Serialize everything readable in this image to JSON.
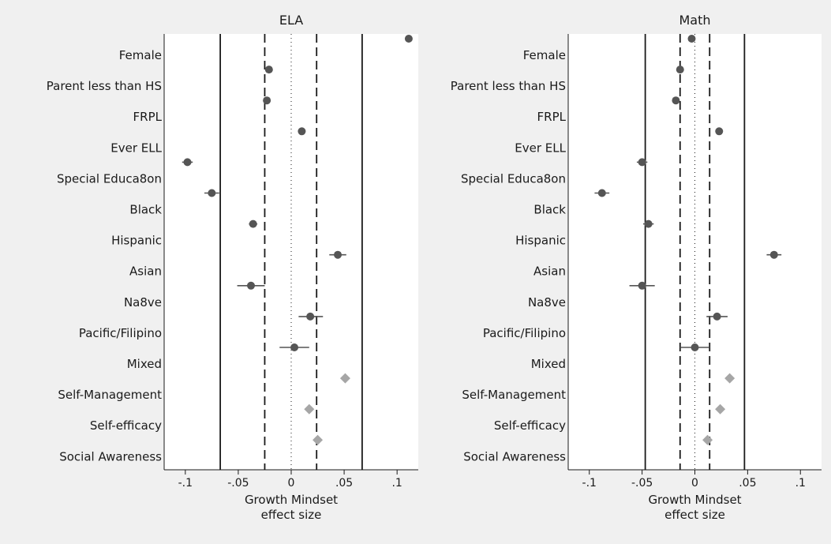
{
  "chart_data": [
    {
      "type": "scatter",
      "title": "ELA",
      "xlabel": [
        "Growth Mindset",
        "effect size"
      ],
      "xlim": [
        -0.12,
        0.12
      ],
      "xticks": [
        -0.1,
        -0.05,
        0,
        0.05,
        0.1
      ],
      "xtick_labels": [
        "-.1",
        "-.05",
        "0",
        ".05",
        ".1"
      ],
      "reference_lines": [
        {
          "style": "solid",
          "x": -0.067
        },
        {
          "style": "dashed",
          "x": -0.025
        },
        {
          "style": "dotted",
          "x": 0
        },
        {
          "style": "dashed",
          "x": 0.024
        },
        {
          "style": "solid",
          "x": 0.067
        }
      ],
      "categories": [
        "Female",
        "Parent less than HS",
        "FRPL",
        "Ever ELL",
        "Special Educa8on",
        "Black",
        "Hispanic",
        "Asian",
        "Na8ve",
        "Pacific/Filipino",
        "Mixed",
        "Self-Management",
        "Self-efficacy",
        "Social Awareness"
      ],
      "points": [
        {
          "label": "Female",
          "x": 0.111,
          "ci": [
            0.109,
            0.113
          ],
          "marker": "circle"
        },
        {
          "label": "Parent less than HS",
          "x": -0.021,
          "ci": [
            -0.023,
            -0.019
          ],
          "marker": "circle"
        },
        {
          "label": "FRPL",
          "x": -0.023,
          "ci": [
            -0.026,
            -0.02
          ],
          "marker": "circle"
        },
        {
          "label": "Ever ELL",
          "x": 0.01,
          "ci": [
            0.008,
            0.012
          ],
          "marker": "circle"
        },
        {
          "label": "Special Educa8on",
          "x": -0.098,
          "ci": [
            -0.103,
            -0.093
          ],
          "marker": "circle"
        },
        {
          "label": "Black",
          "x": -0.075,
          "ci": [
            -0.082,
            -0.068
          ],
          "marker": "circle"
        },
        {
          "label": "Hispanic",
          "x": -0.036,
          "ci": [
            -0.04,
            -0.032
          ],
          "marker": "circle"
        },
        {
          "label": "Asian",
          "x": 0.044,
          "ci": [
            0.036,
            0.052
          ],
          "marker": "circle"
        },
        {
          "label": "Na8ve",
          "x": -0.038,
          "ci": [
            -0.051,
            -0.025
          ],
          "marker": "circle"
        },
        {
          "label": "Pacific/Filipino",
          "x": 0.018,
          "ci": [
            0.007,
            0.03
          ],
          "marker": "circle"
        },
        {
          "label": "Mixed",
          "x": 0.003,
          "ci": [
            -0.011,
            0.017
          ],
          "marker": "circle"
        },
        {
          "label": "Self-Management",
          "x": 0.051,
          "ci": [
            0.05,
            0.052
          ],
          "marker": "diamond"
        },
        {
          "label": "Self-efficacy",
          "x": 0.017,
          "ci": [
            0.016,
            0.018
          ],
          "marker": "diamond"
        },
        {
          "label": "Social Awareness",
          "x": 0.025,
          "ci": [
            0.024,
            0.026
          ],
          "marker": "diamond"
        }
      ]
    },
    {
      "type": "scatter",
      "title": "Math",
      "xlabel": [
        "Growth Mindset",
        "effect size"
      ],
      "xlim": [
        -0.12,
        0.12
      ],
      "xticks": [
        -0.1,
        -0.05,
        0,
        0.05,
        0.1
      ],
      "xtick_labels": [
        "-.1",
        "-.05",
        "0",
        ".05",
        ".1"
      ],
      "reference_lines": [
        {
          "style": "solid",
          "x": -0.047
        },
        {
          "style": "dashed",
          "x": -0.014
        },
        {
          "style": "dotted",
          "x": 0
        },
        {
          "style": "dashed",
          "x": 0.014
        },
        {
          "style": "solid",
          "x": 0.047
        }
      ],
      "categories": [
        "Female",
        "Parent less than HS",
        "FRPL",
        "Ever ELL",
        "Special Educa8on",
        "Black",
        "Hispanic",
        "Asian",
        "Na8ve",
        "Pacific/Filipino",
        "Mixed",
        "Self-Management",
        "Self-efficacy",
        "Social Awareness"
      ],
      "points": [
        {
          "label": "Female",
          "x": -0.003,
          "ci": [
            -0.005,
            -0.001
          ],
          "marker": "circle"
        },
        {
          "label": "Parent less than HS",
          "x": -0.014,
          "ci": [
            -0.016,
            -0.012
          ],
          "marker": "circle"
        },
        {
          "label": "FRPL",
          "x": -0.018,
          "ci": [
            -0.021,
            -0.015
          ],
          "marker": "circle"
        },
        {
          "label": "Ever ELL",
          "x": 0.023,
          "ci": [
            0.021,
            0.025
          ],
          "marker": "circle"
        },
        {
          "label": "Special Educa8on",
          "x": -0.05,
          "ci": [
            -0.055,
            -0.045
          ],
          "marker": "circle"
        },
        {
          "label": "Black",
          "x": -0.088,
          "ci": [
            -0.095,
            -0.081
          ],
          "marker": "circle"
        },
        {
          "label": "Hispanic",
          "x": -0.044,
          "ci": [
            -0.049,
            -0.039
          ],
          "marker": "circle"
        },
        {
          "label": "Asian",
          "x": 0.075,
          "ci": [
            0.068,
            0.082
          ],
          "marker": "circle"
        },
        {
          "label": "Na8ve",
          "x": -0.05,
          "ci": [
            -0.062,
            -0.038
          ],
          "marker": "circle"
        },
        {
          "label": "Pacific/Filipino",
          "x": 0.021,
          "ci": [
            0.011,
            0.031
          ],
          "marker": "circle"
        },
        {
          "label": "Mixed",
          "x": 0.0,
          "ci": [
            -0.014,
            0.014
          ],
          "marker": "circle"
        },
        {
          "label": "Self-Management",
          "x": 0.033,
          "ci": [
            0.032,
            0.034
          ],
          "marker": "diamond"
        },
        {
          "label": "Self-efficacy",
          "x": 0.024,
          "ci": [
            0.023,
            0.025
          ],
          "marker": "diamond"
        },
        {
          "label": "Social Awareness",
          "x": 0.012,
          "ci": [
            0.011,
            0.013
          ],
          "marker": "diamond"
        }
      ]
    }
  ],
  "colors": {
    "figure_background": "#f0f0f0",
    "plot_background": "#ffffff",
    "circle_marker": "#555555",
    "diamond_marker": "#a6a6a6",
    "lines": "#1a1a1a"
  }
}
